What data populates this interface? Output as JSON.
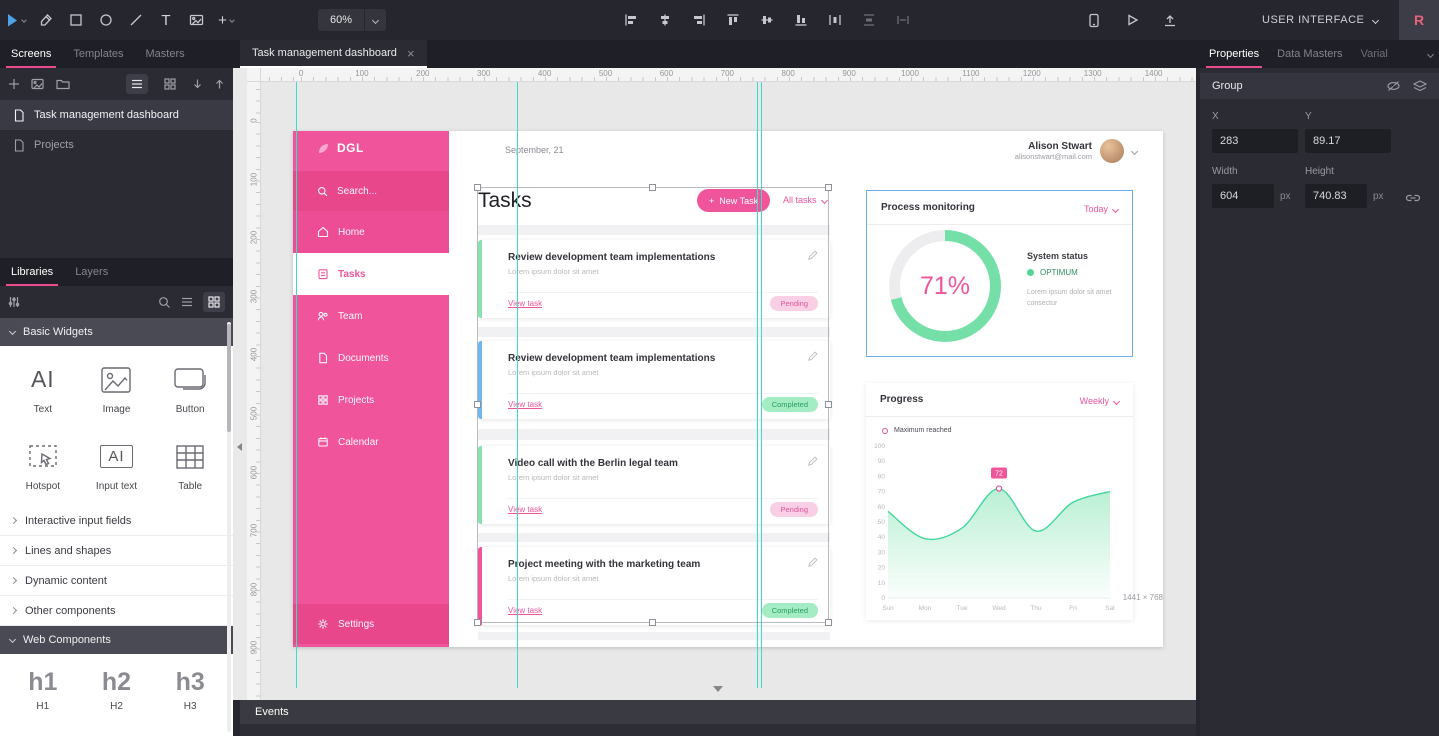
{
  "colors": {
    "app_accent": "#ea4c8f",
    "design_pink": "#f0549b",
    "mint": "#74e0a8",
    "donut_track": "#ededf0",
    "guide": "#3edcc6",
    "selection_blue": "#6badec"
  },
  "toolbar": {
    "zoom_value": "60%",
    "text_tool_glyph": "T",
    "plus_glyph": "+",
    "user_menu_label": "USER INTERFACE",
    "avatar_initial": "R"
  },
  "left_panel": {
    "tabs": {
      "screens": "Screens",
      "templates": "Templates",
      "masters": "Masters"
    },
    "screens": [
      {
        "label": "Task management dashboard"
      },
      {
        "label": "Projects"
      }
    ],
    "library_tabs": {
      "libraries": "Libraries",
      "layers": "Layers"
    },
    "basic_widgets_header": "Basic Widgets",
    "widgets": [
      {
        "label": "Text",
        "glyph": "AI"
      },
      {
        "label": "Image"
      },
      {
        "label": "Button"
      },
      {
        "label": "Hotspot"
      },
      {
        "label": "Input text",
        "glyph": "AI"
      },
      {
        "label": "Table"
      }
    ],
    "collapsed_sections": [
      {
        "label": "Interactive input fields"
      },
      {
        "label": "Lines and shapes"
      },
      {
        "label": "Dynamic content"
      },
      {
        "label": "Other components"
      }
    ],
    "web_components_header": "Web Components",
    "web_widgets": [
      {
        "glyph": "h1",
        "label": "H1"
      },
      {
        "glyph": "h2",
        "label": "H2"
      },
      {
        "glyph": "h3",
        "label": "H3"
      }
    ]
  },
  "canvas": {
    "tab_title": "Task management dashboard",
    "close_glyph": "×",
    "ruler_h": [
      "0",
      "100",
      "200",
      "300",
      "400",
      "500",
      "600",
      "700",
      "800",
      "900",
      "1000",
      "1100",
      "1200",
      "1300",
      "1400"
    ],
    "ruler_v": [
      "0",
      "100",
      "200",
      "300",
      "400",
      "500",
      "600",
      "700",
      "800",
      "900"
    ],
    "size_label": "1441 × 768"
  },
  "design": {
    "sidebar": {
      "logo": "DGL",
      "items": [
        {
          "label": "Search..."
        },
        {
          "label": "Home"
        },
        {
          "label": "Tasks"
        },
        {
          "label": "Team"
        },
        {
          "label": "Documents"
        },
        {
          "label": "Projects"
        },
        {
          "label": "Calendar"
        }
      ],
      "settings": "Settings"
    },
    "header": {
      "date": "September, 21",
      "user_name": "Alison Stwart",
      "user_email": "alisonstwart@mail.com"
    },
    "tasks": {
      "title": "Tasks",
      "plus_glyph": "+",
      "new_task_label": "New Task",
      "filter_label": "All tasks",
      "cards": [
        {
          "title": "Review development team implementations",
          "desc": "Lorem ipsum dolor sit amet",
          "link": "View task",
          "status": "Pending",
          "accent": "#86e2ae"
        },
        {
          "title": "Review development team implementations",
          "desc": "Lorem ipsum dolor sit amet",
          "link": "View task",
          "status": "Completed",
          "accent": "#6db7f2"
        },
        {
          "title": "Video call with the Berlin legal team",
          "desc": "Lorem ipsum dolor sit amet",
          "link": "View task",
          "status": "Pending",
          "accent": "#86e2ae"
        },
        {
          "title": "Project meeting with the marketing team",
          "desc": "Lorem ipsum dolor sit amet",
          "link": "View task",
          "status": "Completed",
          "accent": "#f0549b"
        }
      ]
    },
    "process": {
      "title": "Process monitoring",
      "period": "Today",
      "percent": 71,
      "percent_label": "71%",
      "status_title": "System status",
      "status_value": "OPTIMUM",
      "desc": "Lorem ipsum dolor sit amet consectur"
    },
    "progress": {
      "title": "Progress",
      "period": "Weekly",
      "legend": "Maximum reached",
      "chart_data": {
        "type": "area",
        "x": [
          "Sun",
          "Mon",
          "Tue",
          "Wed",
          "Thu",
          "Fri",
          "Sat"
        ],
        "values": [
          57,
          39,
          46,
          72,
          44,
          63,
          70
        ],
        "ylim": [
          0,
          100
        ],
        "ytick_step": 10,
        "peak_label": "72",
        "peak_index": 3,
        "line_color": "#42d79c",
        "fill_top": "rgba(116,224,168,0.5)",
        "fill_bottom": "rgba(116,224,168,0.03)",
        "legend": "Maximum reached",
        "grid": false,
        "legend_position": "top-left"
      }
    }
  },
  "events_panel": {
    "title": "Events"
  },
  "right_panel": {
    "tabs": {
      "properties": "Properties",
      "data_masters": "Data Masters",
      "variables": "Varial"
    },
    "group": {
      "title": "Group",
      "x_label": "X",
      "y_label": "Y",
      "x_value": "283",
      "y_value": "89.17",
      "width_label": "Width",
      "height_label": "Height",
      "width_value": "604",
      "height_value": "740.83",
      "unit": "px"
    }
  }
}
